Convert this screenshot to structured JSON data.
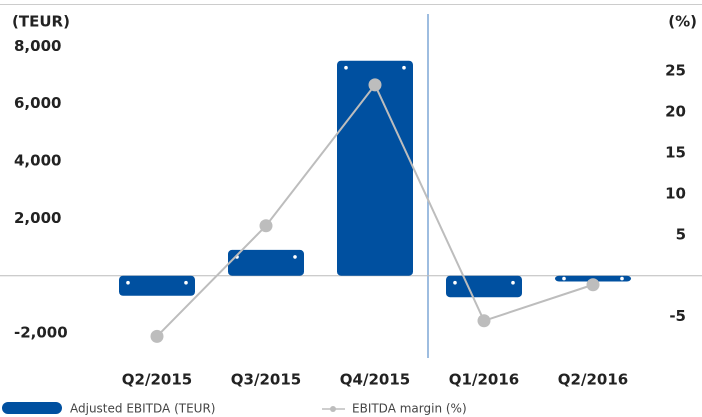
{
  "chart_data": {
    "type": "bar",
    "y_label": "(TEUR)",
    "y2_label": "(%)",
    "categories": [
      "Q2/2015",
      "Q3/2015",
      "Q4/2015",
      "Q1/2016",
      "Q2/2016"
    ],
    "series": [
      {
        "name": "Adjusted EBITDA (TEUR)",
        "type": "bar",
        "color": "#0050a0",
        "axis": "y",
        "values": [
          -700,
          900,
          7500,
          -750,
          -200
        ]
      },
      {
        "name": "EBITDA margin (%)",
        "type": "line",
        "color": "#bdbdbd",
        "axis": "y2",
        "values": [
          -7.4,
          6.1,
          23.3,
          -5.5,
          -1.1
        ]
      }
    ],
    "ylim": [
      -2800,
      9200
    ],
    "yticks": [
      {
        "value": -2000,
        "label": "-2,000"
      },
      {
        "value": 2000,
        "label": "2,000"
      },
      {
        "value": 4000,
        "label": "4,000"
      },
      {
        "value": 6000,
        "label": "6,000"
      },
      {
        "value": 8000,
        "label": "8,000"
      }
    ],
    "y2lim": [
      -9.8,
      32.2
    ],
    "y2ticks": [
      -5,
      5,
      10,
      15,
      20,
      25
    ]
  }
}
